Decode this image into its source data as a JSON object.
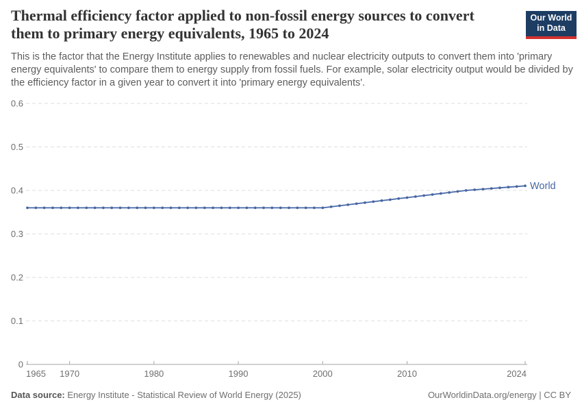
{
  "header": {
    "title": "Thermal efficiency factor applied to non-fossil energy sources to convert them to primary energy equivalents, 1965 to 2024",
    "subtitle": "This is the factor that the Energy Institute applies to renewables and nuclear electricity outputs to convert them into 'primary energy equivalents' to compare them to energy supply from fossil fuels. For example, solar electricity output would be divided by the efficiency factor in a given year to convert it into 'primary energy equivalents'.",
    "logo": {
      "line1": "Our World",
      "line2": "in Data",
      "bg_color": "#1d3d63",
      "accent_color": "#d4302f"
    }
  },
  "chart_data": {
    "type": "line",
    "title": "Thermal efficiency factor applied to non-fossil energy sources to convert them to primary energy equivalents",
    "xlabel": "",
    "ylabel": "",
    "xlim": [
      1965,
      2024
    ],
    "ylim": [
      0,
      0.6
    ],
    "yticks": [
      0,
      0.1,
      0.2,
      0.3,
      0.4,
      0.5,
      0.6
    ],
    "xticks": [
      1965,
      1970,
      1980,
      1990,
      2000,
      2010,
      2024
    ],
    "grid": "horizontal-dashed",
    "legend_position": "end-of-line-label",
    "grid_color": "#dedede",
    "axis_color": "#a6a6a6",
    "tick_label_color": "#6e6e6e",
    "series": [
      {
        "name": "World",
        "color": "#4666a5",
        "x": [
          1965,
          1966,
          1967,
          1968,
          1969,
          1970,
          1971,
          1972,
          1973,
          1974,
          1975,
          1976,
          1977,
          1978,
          1979,
          1980,
          1981,
          1982,
          1983,
          1984,
          1985,
          1986,
          1987,
          1988,
          1989,
          1990,
          1991,
          1992,
          1993,
          1994,
          1995,
          1996,
          1997,
          1998,
          1999,
          2000,
          2001,
          2002,
          2003,
          2004,
          2005,
          2006,
          2007,
          2008,
          2009,
          2010,
          2011,
          2012,
          2013,
          2014,
          2015,
          2016,
          2017,
          2018,
          2019,
          2020,
          2021,
          2022,
          2023,
          2024
        ],
        "values": [
          0.36,
          0.36,
          0.36,
          0.36,
          0.36,
          0.36,
          0.36,
          0.36,
          0.36,
          0.36,
          0.36,
          0.36,
          0.36,
          0.36,
          0.36,
          0.36,
          0.36,
          0.36,
          0.36,
          0.36,
          0.36,
          0.36,
          0.36,
          0.36,
          0.36,
          0.36,
          0.36,
          0.36,
          0.36,
          0.36,
          0.36,
          0.36,
          0.36,
          0.36,
          0.36,
          0.36,
          0.3624,
          0.3647,
          0.3671,
          0.3694,
          0.3718,
          0.3741,
          0.3765,
          0.3788,
          0.3812,
          0.3835,
          0.3859,
          0.3882,
          0.3906,
          0.3929,
          0.3953,
          0.3976,
          0.4,
          0.4015,
          0.403,
          0.4045,
          0.406,
          0.4075,
          0.409,
          0.4105
        ]
      }
    ]
  },
  "footer": {
    "source_label": "Data source:",
    "source_text": " Energy Institute - Statistical Review of World Energy (2025)",
    "credit": "OurWorldinData.org/energy | CC BY"
  }
}
